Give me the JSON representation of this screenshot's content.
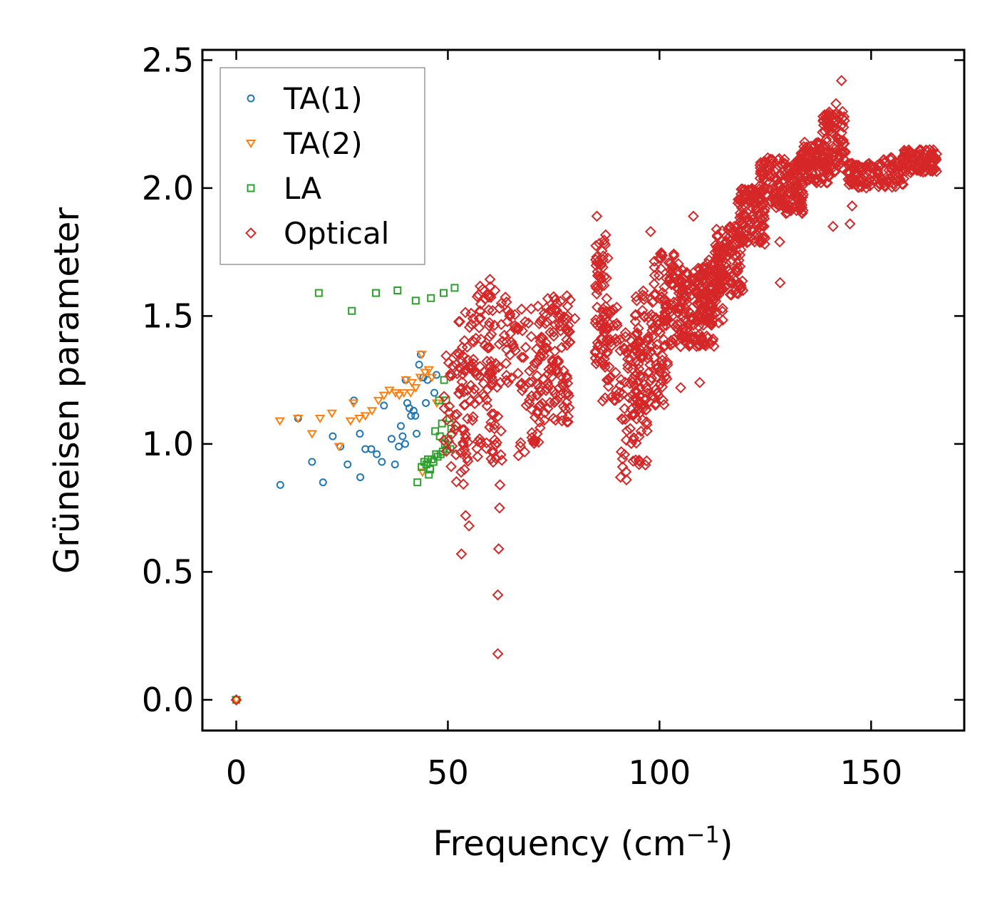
{
  "chart_data": {
    "type": "scatter",
    "xlabel": "Frequency (cm",
    "xlabel_sup": "−1",
    "xlabel_close": ")",
    "ylabel": "Grüneisen parameter",
    "xlim": [
      -8,
      172
    ],
    "ylim": [
      -0.12,
      2.54
    ],
    "xticks": [
      0,
      50,
      100,
      150
    ],
    "yticks": [
      0.0,
      0.5,
      1.0,
      1.5,
      2.0,
      2.5
    ],
    "xtick_labels": [
      "0",
      "50",
      "100",
      "150"
    ],
    "ytick_labels": [
      "0.0",
      "0.5",
      "1.0",
      "1.5",
      "2.0",
      "2.5"
    ],
    "legend_position": "top-left",
    "series": [
      {
        "name": "TA(1)",
        "marker": "circle",
        "color": "#1f77b4",
        "points": [
          [
            0,
            0
          ],
          [
            10.4,
            0.84
          ],
          [
            14.6,
            1.1
          ],
          [
            17.9,
            0.93
          ],
          [
            20.5,
            0.85
          ],
          [
            22.8,
            1.03
          ],
          [
            24.6,
            0.99
          ],
          [
            26.3,
            0.92
          ],
          [
            27.8,
            1.17
          ],
          [
            29.2,
            1.04
          ],
          [
            29.3,
            0.87
          ],
          [
            30.5,
            0.98
          ],
          [
            31.9,
            0.98
          ],
          [
            33.2,
            0.96
          ],
          [
            34.4,
            0.93
          ],
          [
            34.9,
            1.15
          ],
          [
            36.7,
            1.02
          ],
          [
            37.5,
            0.92
          ],
          [
            38.4,
            0.99
          ],
          [
            38.9,
            1.07
          ],
          [
            39.3,
            1.03
          ],
          [
            39.9,
            1.0
          ],
          [
            40.4,
            1.16
          ],
          [
            40.9,
            1.14
          ],
          [
            41.3,
            1.11
          ],
          [
            41.9,
            1.13
          ],
          [
            42.3,
            1.11
          ],
          [
            42.6,
            1.04
          ],
          [
            43.2,
            1.31
          ],
          [
            43.6,
            1.35
          ],
          [
            44.2,
            1.26
          ],
          [
            44.8,
            1.16
          ],
          [
            45.2,
            1.25
          ],
          [
            46.8,
            1.2
          ],
          [
            47.3,
            1.27
          ],
          [
            40.0,
            1.25
          ]
        ]
      },
      {
        "name": "TA(2)",
        "marker": "triangle-down",
        "color": "#ff7f0e",
        "points": [
          [
            0,
            0
          ],
          [
            10.3,
            1.09
          ],
          [
            14.6,
            1.1
          ],
          [
            17.9,
            1.04
          ],
          [
            19.8,
            1.1
          ],
          [
            22.6,
            1.12
          ],
          [
            24.3,
            0.99
          ],
          [
            27.0,
            1.09
          ],
          [
            27.7,
            1.16
          ],
          [
            29.1,
            1.1
          ],
          [
            30.5,
            1.11
          ],
          [
            32.1,
            1.13
          ],
          [
            33.6,
            1.17
          ],
          [
            34.9,
            1.19
          ],
          [
            36.2,
            1.21
          ],
          [
            37.6,
            1.2
          ],
          [
            38.5,
            1.19
          ],
          [
            39.6,
            1.2
          ],
          [
            40.1,
            1.25
          ],
          [
            41.5,
            1.24
          ],
          [
            41.2,
            1.2
          ],
          [
            42.4,
            1.22
          ],
          [
            43.5,
            1.26
          ],
          [
            43.8,
            1.35
          ],
          [
            44.6,
            1.28
          ],
          [
            45.5,
            1.29
          ],
          [
            46.2,
            1.26
          ],
          [
            47.4,
            1.16
          ],
          [
            44.0,
            0.89
          ]
        ]
      },
      {
        "name": "LA",
        "marker": "square",
        "color": "#2ca02c",
        "points": [
          [
            0,
            0
          ],
          [
            19.5,
            1.59
          ],
          [
            27.3,
            1.52
          ],
          [
            33.0,
            1.59
          ],
          [
            38.1,
            1.6
          ],
          [
            42.4,
            1.56
          ],
          [
            46.0,
            1.57
          ],
          [
            49.0,
            1.59
          ],
          [
            51.6,
            1.61
          ],
          [
            42.8,
            0.85
          ],
          [
            43.8,
            0.91
          ],
          [
            44.4,
            0.93
          ],
          [
            44.9,
            0.92
          ],
          [
            45.3,
            0.94
          ],
          [
            45.5,
            0.88
          ],
          [
            45.8,
            0.9
          ],
          [
            46.2,
            0.94
          ],
          [
            46.6,
            0.93
          ],
          [
            47.0,
            1.05
          ],
          [
            47.2,
            0.96
          ],
          [
            47.6,
            0.95
          ],
          [
            47.9,
            1.17
          ],
          [
            48.1,
            1.03
          ],
          [
            48.3,
            0.96
          ],
          [
            48.6,
            1.08
          ],
          [
            48.8,
            0.97
          ],
          [
            49.1,
            1.25
          ],
          [
            49.3,
            1.0
          ],
          [
            49.6,
            1.17
          ],
          [
            49.8,
            0.98
          ],
          [
            50.1,
            1.02
          ],
          [
            50.4,
            1.1
          ],
          [
            50.6,
            0.98
          ],
          [
            50.8,
            1.06
          ]
        ]
      },
      {
        "name": "Optical",
        "marker": "diamond",
        "color": "#d62728",
        "points": [
          [
            0,
            0
          ],
          [
            53.2,
            0.57
          ],
          [
            54.2,
            0.72
          ],
          [
            55.0,
            0.68
          ],
          [
            61.8,
            0.18
          ],
          [
            61.8,
            0.41
          ],
          [
            62.0,
            0.59
          ],
          [
            62.2,
            0.75
          ],
          [
            62.3,
            0.84
          ],
          [
            143.0,
            2.42
          ],
          [
            141.7,
            2.33
          ],
          [
            128.5,
            1.63
          ],
          [
            128.4,
            1.79
          ],
          [
            109.5,
            1.24
          ],
          [
            105.0,
            1.22
          ],
          [
            132.8,
            1.92
          ],
          [
            145.0,
            1.86
          ],
          [
            141.0,
            1.85
          ],
          [
            145.5,
            1.93
          ],
          [
            92.2,
            0.86
          ],
          [
            90.8,
            0.87
          ],
          [
            85.2,
            1.89
          ],
          [
            80.0,
            1.49
          ],
          [
            87.6,
            1.25
          ],
          [
            89.5,
            1.17
          ],
          [
            98.8,
            1.69
          ],
          [
            97.9,
            1.83
          ],
          [
            108.0,
            1.89
          ],
          [
            104.5,
            1.63
          ]
        ],
        "bands": [
          {
            "x": [
              49.0,
              56.0
            ],
            "y": [
              0.84,
              1.38
            ],
            "n": 60
          },
          {
            "x": [
              52.0,
              58.0
            ],
            "y": [
              1.15,
              1.52
            ],
            "n": 30
          },
          {
            "x": [
              56.0,
              61.5
            ],
            "y": [
              0.92,
              1.65
            ],
            "n": 55
          },
          {
            "x": [
              59.5,
              66.0
            ],
            "y": [
              1.22,
              1.58
            ],
            "n": 45
          },
          {
            "x": [
              60.5,
              63.0
            ],
            "y": [
              0.92,
              1.12
            ],
            "n": 12
          },
          {
            "x": [
              66.0,
              70.0
            ],
            "y": [
              0.95,
              1.55
            ],
            "n": 25
          },
          {
            "x": [
              68.5,
              72.0
            ],
            "y": [
              1.0,
              1.4
            ],
            "n": 25
          },
          {
            "x": [
              71.0,
              79.0
            ],
            "y": [
              1.08,
              1.58
            ],
            "n": 120
          },
          {
            "x": [
              84.8,
              88.0
            ],
            "y": [
              1.3,
              1.84
            ],
            "n": 70
          },
          {
            "x": [
              86.5,
              90.0
            ],
            "y": [
              1.15,
              1.55
            ],
            "n": 30
          },
          {
            "x": [
              90.5,
              97.5
            ],
            "y": [
              0.89,
              1.45
            ],
            "n": 90
          },
          {
            "x": [
              94.0,
              102.0
            ],
            "y": [
              1.15,
              1.6
            ],
            "n": 110
          },
          {
            "x": [
              98.0,
              104.5
            ],
            "y": [
              1.38,
              1.78
            ],
            "n": 70
          },
          {
            "x": [
              104.0,
              113.0
            ],
            "y": [
              1.38,
              1.68
            ],
            "n": 150
          },
          {
            "x": [
              109.0,
              115.0
            ],
            "y": [
              1.46,
              1.72
            ],
            "n": 90
          },
          {
            "x": [
              113.0,
              120.0
            ],
            "y": [
              1.58,
              1.85
            ],
            "n": 120
          },
          {
            "x": [
              118.5,
              125.0
            ],
            "y": [
              1.78,
              2.0
            ],
            "n": 110
          },
          {
            "x": [
              123.5,
              134.0
            ],
            "y": [
              1.9,
              2.12
            ],
            "n": 170
          },
          {
            "x": [
              133.0,
              140.0
            ],
            "y": [
              2.02,
              2.18
            ],
            "n": 100
          },
          {
            "x": [
              138.5,
              144.0
            ],
            "y": [
              2.06,
              2.3
            ],
            "n": 90
          },
          {
            "x": [
              144.0,
              152.0
            ],
            "y": [
              2.0,
              2.1
            ],
            "n": 70
          },
          {
            "x": [
              151.0,
              158.0
            ],
            "y": [
              2.0,
              2.12
            ],
            "n": 60
          },
          {
            "x": [
              157.0,
              165.5
            ],
            "y": [
              2.06,
              2.15
            ],
            "n": 90
          }
        ]
      }
    ]
  }
}
